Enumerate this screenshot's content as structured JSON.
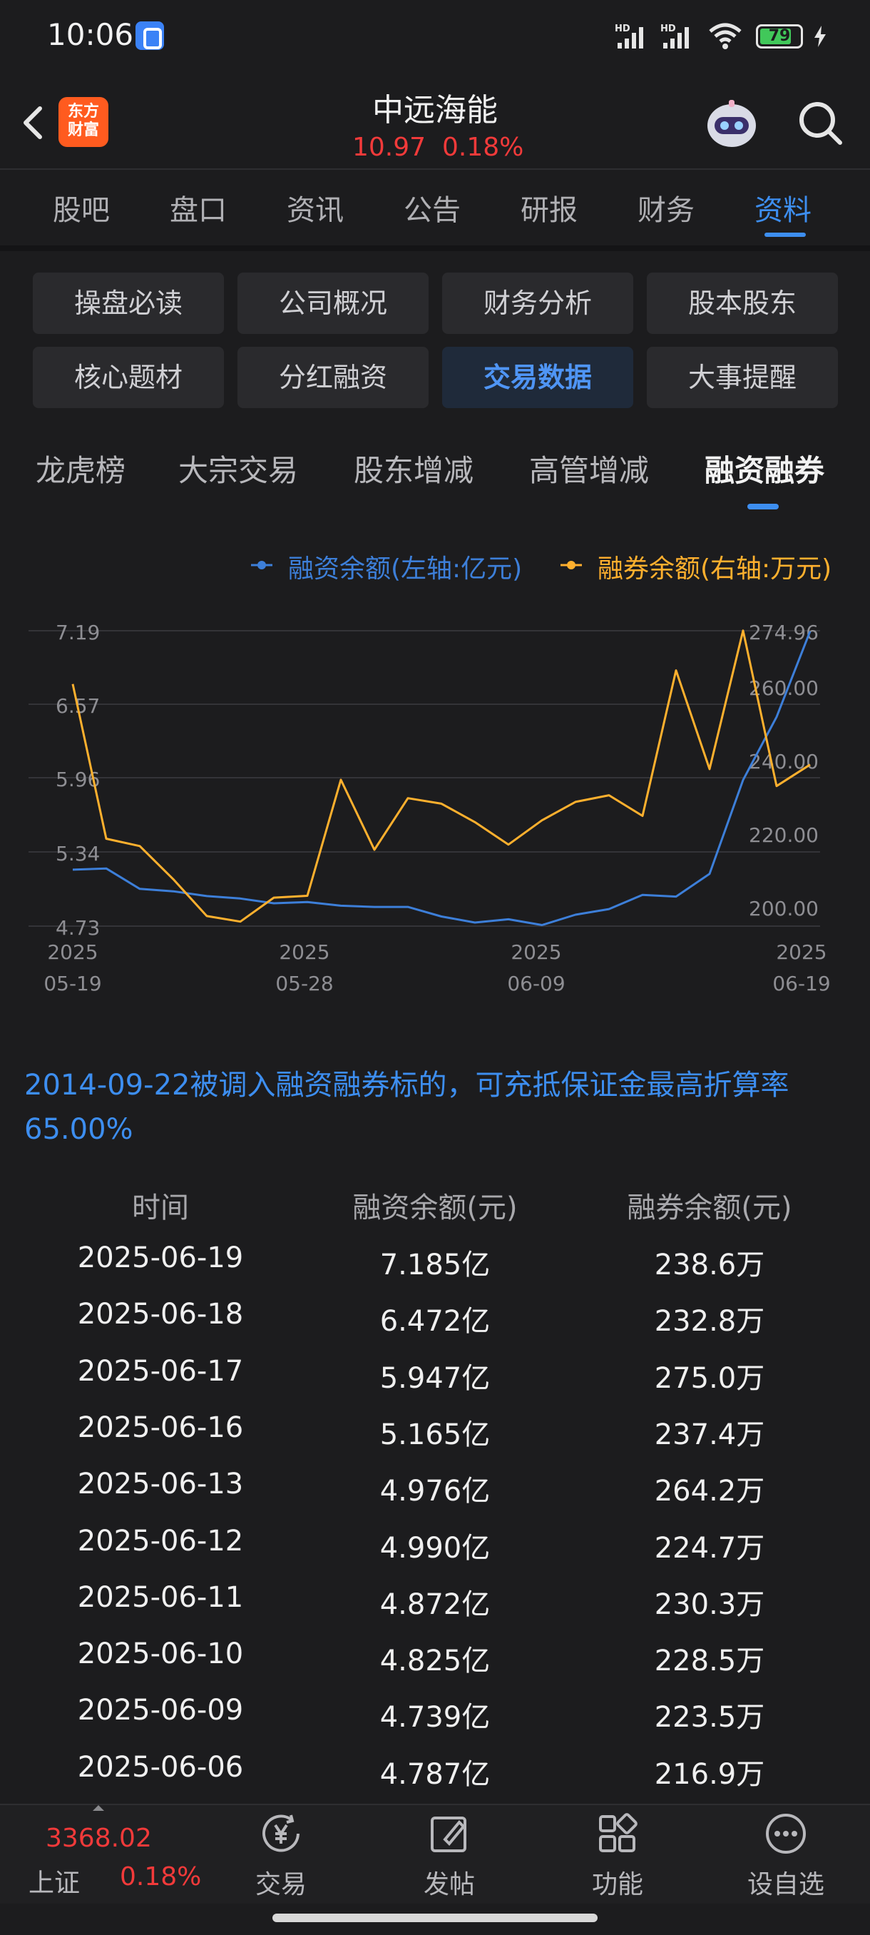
{
  "status": {
    "time": "10:06",
    "battery": "79",
    "battery_level": 0.79,
    "signal_label": "HD"
  },
  "header": {
    "logo_line1": "东方",
    "logo_line2": "财富",
    "stock_name": "中远海能",
    "price": "10.97",
    "change": "0.18%"
  },
  "main_tabs": [
    "股吧",
    "盘口",
    "资讯",
    "公告",
    "研报",
    "财务",
    "资料"
  ],
  "grid_buttons": [
    "操盘必读",
    "公司概况",
    "财务分析",
    "股本股东",
    "核心题材",
    "分红融资",
    "交易数据",
    "大事提醒"
  ],
  "sub_tabs": [
    "龙虎榜",
    "大宗交易",
    "股东增减",
    "高管增减",
    "融资融券"
  ],
  "colors": {
    "accent": "#3d8ef0",
    "rise": "#f23a3a",
    "series_financing": "#3d7fd9",
    "series_securities": "#ffb02e"
  },
  "chart_data": {
    "type": "line",
    "legend": [
      "融资余额(左轴:亿元)",
      "融券余额(右轴:万元)"
    ],
    "x_tick_labels": [
      [
        "2025",
        "05-19"
      ],
      [
        "2025",
        "05-28"
      ],
      [
        "2025",
        "06-09"
      ],
      [
        "2025",
        "06-19"
      ]
    ],
    "y_left_ticks": [
      "7.19",
      "6.57",
      "5.96",
      "5.34",
      "4.73"
    ],
    "y_right_ticks": [
      "274.96",
      "260.00",
      "240.00",
      "220.00",
      "200.00"
    ],
    "y_left_range": [
      4.73,
      7.19
    ],
    "y_right_range": [
      195,
      275
    ],
    "dates": [
      "2025-05-19",
      "2025-05-20",
      "2025-05-21",
      "2025-05-22",
      "2025-05-23",
      "2025-05-26",
      "2025-05-27",
      "2025-05-28",
      "2025-05-29",
      "2025-05-30",
      "2025-06-03",
      "2025-06-04",
      "2025-06-05",
      "2025-06-06",
      "2025-06-09",
      "2025-06-10",
      "2025-06-11",
      "2025-06-12",
      "2025-06-13",
      "2025-06-16",
      "2025-06-17",
      "2025-06-18",
      "2025-06-19"
    ],
    "series": [
      {
        "name": "融资余额(左轴:亿元)",
        "axis": "left",
        "values": [
          5.2,
          5.21,
          5.04,
          5.02,
          4.98,
          4.96,
          4.92,
          4.93,
          4.9,
          4.89,
          4.89,
          4.81,
          4.76,
          4.787,
          4.739,
          4.825,
          4.872,
          4.99,
          4.976,
          5.165,
          5.947,
          6.472,
          7.185
        ]
      },
      {
        "name": "融券余额(右轴:万元)",
        "axis": "right",
        "values": [
          260.5,
          218.5,
          216.5,
          207.5,
          197.5,
          196.0,
          202.5,
          203.0,
          234.5,
          215.5,
          229.5,
          228.0,
          223.0,
          216.9,
          223.5,
          228.5,
          230.3,
          224.7,
          264.2,
          237.4,
          275.0,
          232.8,
          238.6
        ]
      }
    ]
  },
  "note": "2014-09-22被调入融资融券标的，可充抵保证金最高折算率65.00%",
  "table": {
    "headers": [
      "时间",
      "融资余额(元)",
      "融券余额(元)"
    ],
    "rows": [
      [
        "2025-06-19",
        "7.185亿",
        "238.6万"
      ],
      [
        "2025-06-18",
        "6.472亿",
        "232.8万"
      ],
      [
        "2025-06-17",
        "5.947亿",
        "275.0万"
      ],
      [
        "2025-06-16",
        "5.165亿",
        "237.4万"
      ],
      [
        "2025-06-13",
        "4.976亿",
        "264.2万"
      ],
      [
        "2025-06-12",
        "4.990亿",
        "224.7万"
      ],
      [
        "2025-06-11",
        "4.872亿",
        "230.3万"
      ],
      [
        "2025-06-10",
        "4.825亿",
        "228.5万"
      ],
      [
        "2025-06-09",
        "4.739亿",
        "223.5万"
      ],
      [
        "2025-06-06",
        "4.787亿",
        "216.9万"
      ]
    ]
  },
  "bottom_bar": {
    "index_value": "3368.02",
    "index_name": "上证",
    "index_change": "0.18%",
    "nav": [
      "交易",
      "发帖",
      "功能",
      "设自选"
    ]
  }
}
